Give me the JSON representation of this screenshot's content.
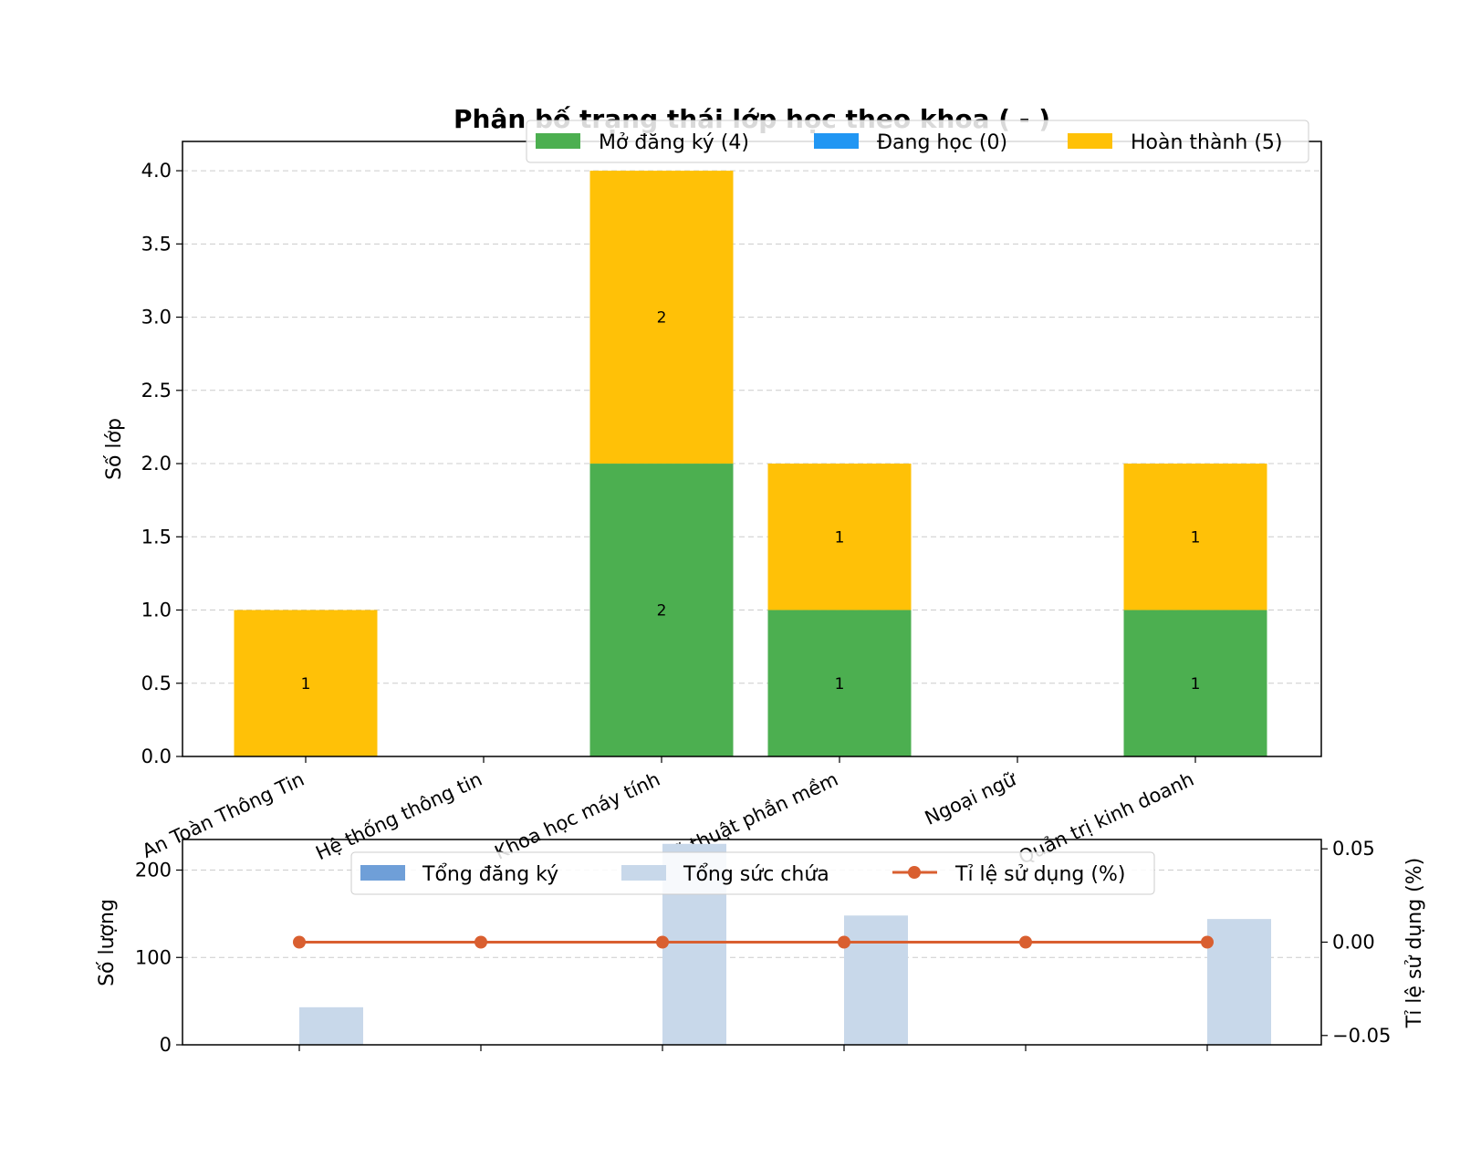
{
  "chart_data": [
    {
      "type": "bar",
      "stacked": true,
      "title": "Phân bố trạng thái lớp học theo khoa ( - )",
      "xlabel": "",
      "ylabel": "Số lớp",
      "ylim": [
        0,
        4.2
      ],
      "yticks": [
        "0.0",
        "0.5",
        "1.0",
        "1.5",
        "2.0",
        "2.5",
        "3.0",
        "3.5",
        "4.0"
      ],
      "grid": "y, dashed",
      "legend_position": "top-right",
      "categories": [
        "An Toàn Thông Tin",
        "Hệ thống thông tin",
        "Khoa học máy tính",
        "Kỹ thuật phần mềm",
        "Ngoại ngữ",
        "Quản trị kinh doanh"
      ],
      "series": [
        {
          "name": "Mở đăng ký (4)",
          "color": "#4caf50",
          "values": [
            0,
            0,
            2,
            1,
            0,
            1
          ]
        },
        {
          "name": "Đang học (0)",
          "color": "#2196f3",
          "values": [
            0,
            0,
            0,
            0,
            0,
            0
          ]
        },
        {
          "name": "Hoàn thành (5)",
          "color": "#ffc107",
          "values": [
            1,
            0,
            2,
            1,
            0,
            1
          ]
        }
      ]
    },
    {
      "type": "bar",
      "secondary_type": "line",
      "title": "",
      "xlabel": "",
      "ylabel": "Số lượng",
      "ylabel_right": "Tỉ lệ sử dụng (%)",
      "ylim": [
        0,
        235
      ],
      "yticks": [
        "0",
        "100",
        "200"
      ],
      "ylim_right": [
        -0.055,
        0.055
      ],
      "yticks_right": [
        "−0.05",
        "0.00",
        "0.05"
      ],
      "grid": "y, dashed",
      "legend_position": "top-center",
      "categories": [
        "An Toàn Thông Tin",
        "Hệ thống thông tin",
        "Khoa học máy tính",
        "Kỹ thuật phần mềm",
        "Ngoại ngữ",
        "Quản trị kinh doanh"
      ],
      "series": [
        {
          "name": "Tổng đăng ký",
          "color": "#6f9fd8",
          "values": [
            0,
            0,
            0,
            0,
            0,
            0
          ]
        },
        {
          "name": "Tổng sức chứa",
          "color": "#c8d8ea",
          "values": [
            43,
            0,
            230,
            148,
            0,
            144
          ]
        },
        {
          "name": "Tỉ lệ sử dụng (%)",
          "color": "#d95f30",
          "axis": "right",
          "values": [
            0,
            0,
            0,
            0,
            0,
            0
          ]
        }
      ]
    }
  ]
}
